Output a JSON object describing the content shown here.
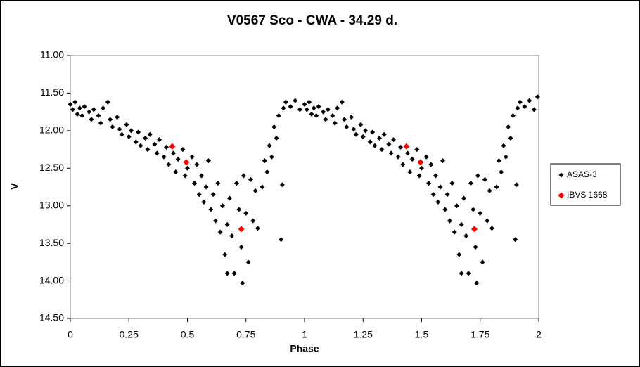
{
  "chart_data": {
    "type": "scatter",
    "title": "V0567 Sco - CWA - 34.29 d.",
    "x_label": "Phase",
    "y_label": "V",
    "xlim": [
      0,
      2
    ],
    "ylim": [
      14.5,
      11
    ],
    "y_inverted": true,
    "xticks": [
      0,
      0.25,
      0.5,
      0.75,
      1,
      1.25,
      1.5,
      1.75,
      2
    ],
    "yticks": [
      {
        "value": 11,
        "label": "11.00"
      },
      {
        "value": 11.5,
        "label": "11.50"
      },
      {
        "value": 12,
        "label": "12.00"
      },
      {
        "value": 12.5,
        "label": "12.50"
      },
      {
        "value": 13,
        "label": "13.00"
      },
      {
        "value": 13.5,
        "label": "13.50"
      },
      {
        "value": 14,
        "label": "14.00"
      },
      {
        "value": 14.5,
        "label": "14.50"
      }
    ],
    "legend": "right",
    "series": [
      {
        "name": "ASAS-3",
        "color": "#000000",
        "x": [
          0.0,
          0.01,
          0.02,
          0.03,
          0.04,
          0.05,
          0.06,
          0.08,
          0.09,
          0.1,
          0.12,
          0.13,
          0.14,
          0.16,
          0.17,
          0.18,
          0.2,
          0.21,
          0.22,
          0.24,
          0.25,
          0.26,
          0.28,
          0.29,
          0.3,
          0.32,
          0.33,
          0.34,
          0.36,
          0.37,
          0.38,
          0.4,
          0.41,
          0.42,
          0.44,
          0.45,
          0.46,
          0.48,
          0.49,
          0.5,
          0.52,
          0.53,
          0.54,
          0.55,
          0.56,
          0.57,
          0.58,
          0.59,
          0.6,
          0.61,
          0.62,
          0.63,
          0.64,
          0.65,
          0.66,
          0.67,
          0.68,
          0.69,
          0.7,
          0.71,
          0.72,
          0.73,
          0.74,
          0.75,
          0.76,
          0.77,
          0.78,
          0.79,
          0.8,
          0.82,
          0.83,
          0.84,
          0.85,
          0.86,
          0.87,
          0.88,
          0.89,
          0.9,
          0.905,
          0.91,
          0.92,
          0.94,
          0.96,
          0.98,
          0.735,
          0.67,
          1.0,
          1.01,
          1.02,
          1.03,
          1.04,
          1.05,
          1.06,
          1.08,
          1.09,
          1.1,
          1.12,
          1.13,
          1.14,
          1.16,
          1.17,
          1.18,
          1.2,
          1.21,
          1.22,
          1.24,
          1.25,
          1.26,
          1.28,
          1.29,
          1.3,
          1.32,
          1.33,
          1.34,
          1.36,
          1.37,
          1.38,
          1.4,
          1.41,
          1.42,
          1.44,
          1.45,
          1.46,
          1.48,
          1.49,
          1.5,
          1.52,
          1.53,
          1.54,
          1.55,
          1.56,
          1.57,
          1.58,
          1.59,
          1.6,
          1.61,
          1.62,
          1.63,
          1.64,
          1.65,
          1.66,
          1.67,
          1.68,
          1.69,
          1.7,
          1.71,
          1.72,
          1.73,
          1.74,
          1.75,
          1.76,
          1.77,
          1.78,
          1.79,
          1.8,
          1.82,
          1.83,
          1.84,
          1.85,
          1.86,
          1.87,
          1.88,
          1.89,
          1.9,
          1.905,
          1.91,
          1.92,
          1.94,
          1.96,
          1.98,
          1.735,
          1.67,
          1.995
        ],
        "values": [
          11.65,
          11.72,
          11.62,
          11.78,
          11.7,
          11.8,
          11.68,
          11.75,
          11.85,
          11.72,
          11.8,
          11.9,
          11.7,
          11.62,
          11.85,
          11.95,
          11.82,
          11.98,
          12.05,
          11.92,
          12.08,
          12.0,
          12.15,
          12.02,
          12.2,
          12.1,
          12.25,
          12.05,
          12.18,
          12.3,
          12.12,
          12.35,
          12.22,
          12.45,
          12.3,
          12.55,
          12.38,
          12.25,
          12.6,
          12.5,
          12.35,
          12.7,
          12.45,
          12.85,
          12.6,
          12.95,
          12.75,
          12.4,
          13.05,
          12.85,
          13.2,
          12.7,
          13.35,
          13.0,
          13.65,
          13.25,
          12.9,
          13.4,
          13.9,
          12.7,
          13.05,
          13.55,
          12.6,
          13.1,
          13.75,
          12.65,
          13.2,
          12.8,
          13.3,
          12.75,
          12.4,
          12.55,
          12.2,
          12.35,
          11.95,
          12.1,
          11.8,
          13.45,
          12.72,
          11.7,
          11.62,
          11.68,
          11.6,
          11.72,
          14.03,
          13.9,
          11.65,
          11.72,
          11.62,
          11.78,
          11.7,
          11.8,
          11.68,
          11.75,
          11.85,
          11.72,
          11.8,
          11.9,
          11.7,
          11.62,
          11.85,
          11.95,
          11.82,
          11.98,
          12.05,
          11.92,
          12.08,
          12.0,
          12.15,
          12.02,
          12.2,
          12.1,
          12.25,
          12.05,
          12.18,
          12.3,
          12.12,
          12.35,
          12.22,
          12.45,
          12.3,
          12.55,
          12.38,
          12.25,
          12.6,
          12.5,
          12.35,
          12.7,
          12.45,
          12.85,
          12.6,
          12.95,
          12.75,
          12.4,
          13.05,
          12.85,
          13.2,
          12.7,
          13.35,
          13.0,
          13.65,
          13.25,
          12.9,
          13.4,
          13.9,
          12.7,
          13.05,
          13.55,
          12.6,
          13.1,
          13.75,
          12.65,
          13.2,
          12.8,
          13.3,
          12.75,
          12.4,
          12.55,
          12.2,
          12.35,
          11.95,
          12.1,
          11.8,
          13.45,
          12.72,
          11.7,
          11.62,
          11.68,
          11.6,
          11.72,
          14.03,
          13.9,
          11.55
        ]
      },
      {
        "name": "IBVS 1668",
        "color": "#ff0000",
        "x": [
          0.435,
          0.495,
          0.73,
          1.435,
          1.495,
          1.725
        ],
        "values": [
          12.21,
          12.42,
          13.31,
          12.21,
          12.42,
          13.31
        ]
      }
    ]
  }
}
